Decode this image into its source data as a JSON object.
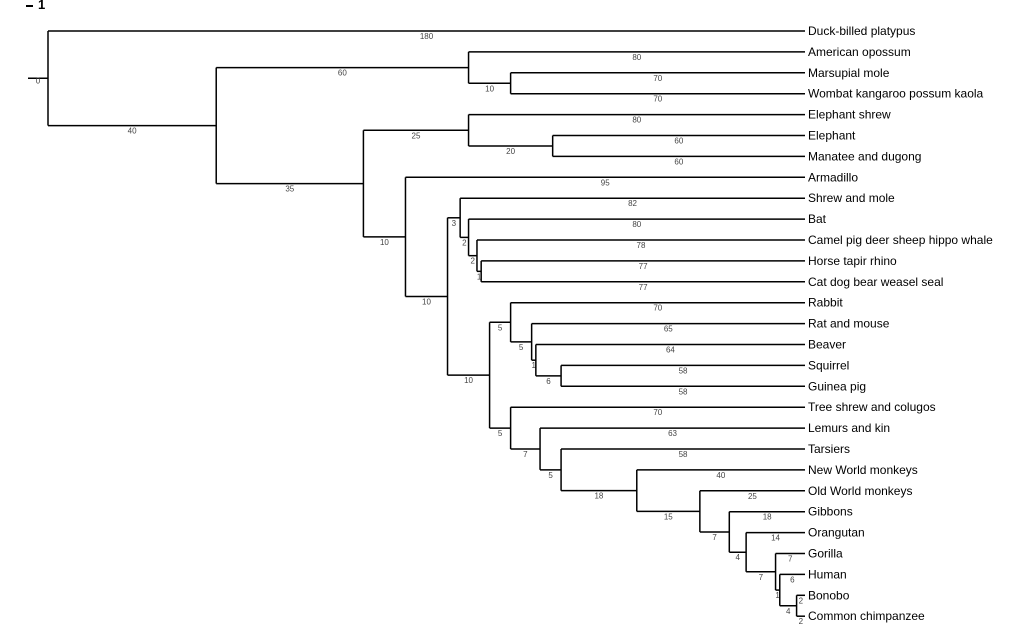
{
  "scale_label": "1",
  "root_label": "0",
  "tree": {
    "len": 0,
    "children": [
      {
        "name": "Duck-billed platypus",
        "len": 180
      },
      {
        "len": 40,
        "children": [
          {
            "len": 60,
            "children": [
              {
                "name": "American opossum",
                "len": 80
              },
              {
                "len": 10,
                "children": [
                  {
                    "name": "Marsupial mole",
                    "len": 70
                  },
                  {
                    "name": "Wombat kangaroo possum kaola",
                    "len": 70
                  }
                ]
              }
            ]
          },
          {
            "len": 35,
            "children": [
              {
                "len": 25,
                "children": [
                  {
                    "name": "Elephant shrew",
                    "len": 80
                  },
                  {
                    "len": 20,
                    "children": [
                      {
                        "name": "Elephant",
                        "len": 60
                      },
                      {
                        "name": "Manatee and dugong",
                        "len": 60
                      }
                    ]
                  }
                ]
              },
              {
                "len": 10,
                "children": [
                  {
                    "name": "Armadillo",
                    "len": 95
                  },
                  {
                    "len": 10,
                    "children": [
                      {
                        "len": 3,
                        "children": [
                          {
                            "name": "Shrew and mole",
                            "len": 82
                          },
                          {
                            "len": 2,
                            "children": [
                              {
                                "name": "Bat",
                                "len": 80
                              },
                              {
                                "len": 2,
                                "children": [
                                  {
                                    "name": "Camel pig deer sheep hippo whale",
                                    "len": 78
                                  },
                                  {
                                    "len": 1,
                                    "children": [
                                      {
                                        "name": "Horse tapir rhino",
                                        "len": 77
                                      },
                                      {
                                        "name": "Cat dog bear weasel seal",
                                        "len": 77
                                      }
                                    ]
                                  }
                                ]
                              }
                            ]
                          }
                        ]
                      },
                      {
                        "len": 10,
                        "children": [
                          {
                            "len": 5,
                            "children": [
                              {
                                "name": "Rabbit",
                                "len": 70
                              },
                              {
                                "len": 5,
                                "children": [
                                  {
                                    "name": "Rat and mouse",
                                    "len": 65
                                  },
                                  {
                                    "len": 1,
                                    "children": [
                                      {
                                        "name": "Beaver",
                                        "len": 64
                                      },
                                      {
                                        "len": 6,
                                        "children": [
                                          {
                                            "name": "Squirrel",
                                            "len": 58
                                          },
                                          {
                                            "name": "Guinea pig",
                                            "len": 58
                                          }
                                        ]
                                      }
                                    ]
                                  }
                                ]
                              }
                            ]
                          },
                          {
                            "len": 5,
                            "children": [
                              {
                                "name": "Tree shrew and colugos",
                                "len": 70
                              },
                              {
                                "len": 7,
                                "children": [
                                  {
                                    "name": "Lemurs and kin",
                                    "len": 63
                                  },
                                  {
                                    "len": 5,
                                    "children": [
                                      {
                                        "name": "Tarsiers",
                                        "len": 58
                                      },
                                      {
                                        "len": 18,
                                        "children": [
                                          {
                                            "name": "New World monkeys",
                                            "len": 40
                                          },
                                          {
                                            "len": 15,
                                            "children": [
                                              {
                                                "name": "Old World monkeys",
                                                "len": 25
                                              },
                                              {
                                                "len": 7,
                                                "children": [
                                                  {
                                                    "name": "Gibbons",
                                                    "len": 18
                                                  },
                                                  {
                                                    "len": 4,
                                                    "children": [
                                                      {
                                                        "name": "Orangutan",
                                                        "len": 14
                                                      },
                                                      {
                                                        "len": 7,
                                                        "children": [
                                                          {
                                                            "name": "Gorilla",
                                                            "len": 7
                                                          },
                                                          {
                                                            "len": 1,
                                                            "children": [
                                                              {
                                                                "name": "Human",
                                                                "len": 6
                                                              },
                                                              {
                                                                "len": 4,
                                                                "children": [
                                                                  {
                                                                    "name": "Bonobo",
                                                                    "len": 2
                                                                  },
                                                                  {
                                                                    "name": "Common chimpanzee",
                                                                    "len": 2
                                                                  }
                                                                ]
                                                              }
                                                            ]
                                                          }
                                                        ]
                                                      }
                                                    ]
                                                  }
                                                ]
                                              }
                                            ]
                                          }
                                        ]
                                      }
                                    ]
                                  }
                                ]
                              }
                            ]
                          }
                        ]
                      }
                    ]
                  }
                ]
              }
            ]
          }
        ]
      }
    ]
  }
}
